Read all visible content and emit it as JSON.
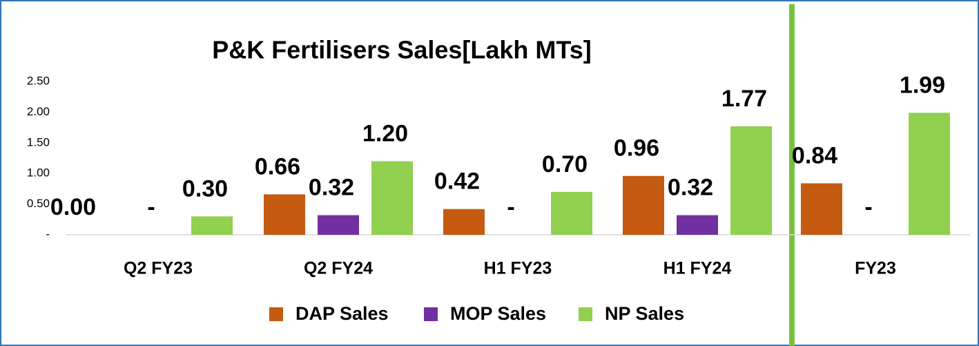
{
  "chart_data": {
    "type": "bar",
    "title": "P&K Fertilisers Sales[Lakh MTs]",
    "categories": [
      "Q2 FY23",
      "Q2 FY24",
      "H1 FY23",
      "H1 FY24",
      "FY23"
    ],
    "series": [
      {
        "name": "DAP Sales",
        "color": "#c55a11",
        "values": [
          0,
          0.66,
          0.42,
          0.96,
          0.84
        ],
        "value_labels": [
          "0.00",
          "0.66",
          "0.42",
          "0.96",
          "0.84"
        ]
      },
      {
        "name": "MOP Sales",
        "color": "#7030a0",
        "values": [
          0,
          0.32,
          0,
          0.32,
          0
        ],
        "value_labels": [
          "-",
          "0.32",
          "-",
          "0.32",
          "-"
        ]
      },
      {
        "name": "NP Sales",
        "color": "#92d050",
        "values": [
          0.3,
          1.2,
          0.7,
          1.77,
          1.99
        ],
        "value_labels": [
          "0.30",
          "1.20",
          "0.70",
          "1.77",
          "1.99"
        ]
      }
    ],
    "ylim": [
      0,
      2.5
    ],
    "yticks": [
      {
        "value": 0,
        "label": "-"
      },
      {
        "value": 0.5,
        "label": "0.50"
      },
      {
        "value": 1,
        "label": "1.00"
      },
      {
        "value": 1.5,
        "label": "1.50"
      },
      {
        "value": 2,
        "label": "2.00"
      },
      {
        "value": 2.5,
        "label": "2.50"
      }
    ],
    "grid": false,
    "legend": "bottom"
  }
}
